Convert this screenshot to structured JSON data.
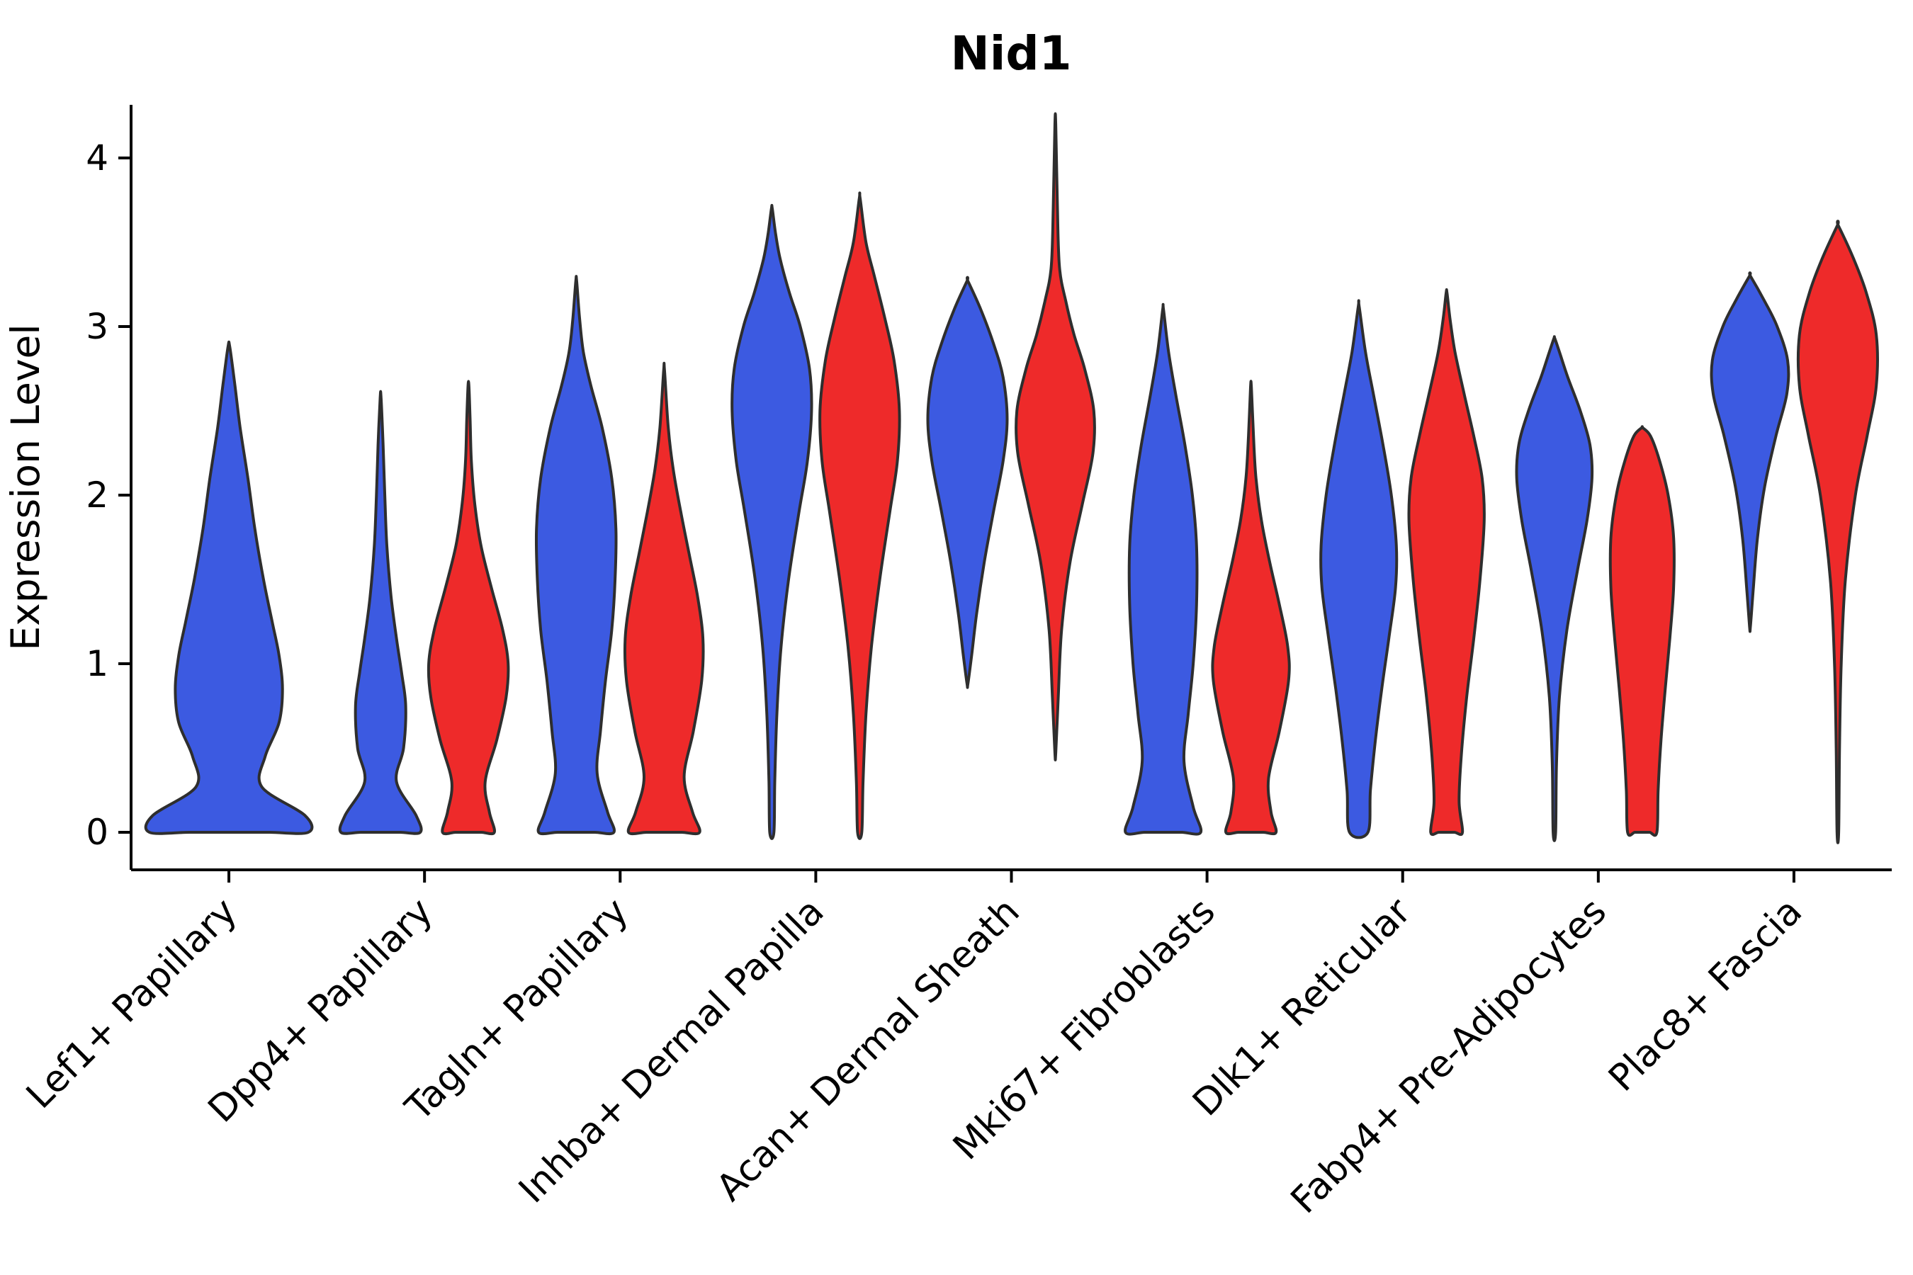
{
  "figure": {
    "background": "#ffffff"
  },
  "chart_data": {
    "type": "violin",
    "title": "Nid1",
    "xlabel": "",
    "ylabel": "Expression Level",
    "yticks": [
      0,
      1,
      2,
      3,
      4
    ],
    "ylim": [
      -0.22,
      4.32
    ],
    "grid": false,
    "legend": "none",
    "edge_color": "#2e2e2e",
    "categories": [
      "Lef1+ Papillary",
      "Dpp4+ Papillary",
      "Tagln+ Papillary",
      "Inhba+ Dermal Papilla",
      "Acan+ Dermal Sheath",
      "Mki67+ Fibroblasts",
      "Dlk1+ Reticular",
      "Fabp4+ Pre-Adipocytes",
      "Plac8+ Fascia"
    ],
    "groups": [
      {
        "id": "blue",
        "color": "#3c5ae1"
      },
      {
        "id": "red",
        "color": "#ee2a2a"
      }
    ],
    "violins": [
      {
        "category": "Lef1+ Papillary",
        "category_index": 0,
        "group": "blue",
        "span": "full",
        "range": [
          0,
          2.88
        ],
        "profile": [
          [
            0,
            0.92
          ],
          [
            0.1,
            0.88
          ],
          [
            0.27,
            0.38
          ],
          [
            0.45,
            0.42
          ],
          [
            0.65,
            0.58
          ],
          [
            0.85,
            0.62
          ],
          [
            1.05,
            0.58
          ],
          [
            1.25,
            0.5
          ],
          [
            1.5,
            0.4
          ],
          [
            1.8,
            0.3
          ],
          [
            2.1,
            0.22
          ],
          [
            2.4,
            0.13
          ],
          [
            2.65,
            0.07
          ],
          [
            2.88,
            0.01
          ]
        ]
      },
      {
        "category": "Dpp4+ Papillary",
        "category_index": 1,
        "group": "blue",
        "span": "half",
        "range": [
          0,
          2.58
        ],
        "profile": [
          [
            0,
            0.95
          ],
          [
            0.1,
            0.85
          ],
          [
            0.3,
            0.38
          ],
          [
            0.5,
            0.55
          ],
          [
            0.75,
            0.6
          ],
          [
            0.95,
            0.5
          ],
          [
            1.15,
            0.38
          ],
          [
            1.4,
            0.25
          ],
          [
            1.7,
            0.15
          ],
          [
            2.0,
            0.1
          ],
          [
            2.3,
            0.06
          ],
          [
            2.58,
            0.01
          ]
        ]
      },
      {
        "category": "Dpp4+ Papillary",
        "category_index": 1,
        "group": "red",
        "span": "half",
        "range": [
          0,
          2.65
        ],
        "profile": [
          [
            0,
            0.62
          ],
          [
            0.12,
            0.5
          ],
          [
            0.3,
            0.4
          ],
          [
            0.55,
            0.68
          ],
          [
            0.8,
            0.9
          ],
          [
            1.0,
            0.95
          ],
          [
            1.2,
            0.82
          ],
          [
            1.45,
            0.55
          ],
          [
            1.7,
            0.3
          ],
          [
            1.95,
            0.15
          ],
          [
            2.2,
            0.07
          ],
          [
            2.45,
            0.04
          ],
          [
            2.65,
            0.01
          ]
        ]
      },
      {
        "category": "Tagln+ Papillary",
        "category_index": 2,
        "group": "blue",
        "span": "half",
        "range": [
          0,
          3.27
        ],
        "profile": [
          [
            0,
            0.9
          ],
          [
            0.12,
            0.75
          ],
          [
            0.35,
            0.5
          ],
          [
            0.6,
            0.58
          ],
          [
            0.9,
            0.7
          ],
          [
            1.2,
            0.85
          ],
          [
            1.5,
            0.93
          ],
          [
            1.8,
            0.95
          ],
          [
            2.1,
            0.85
          ],
          [
            2.4,
            0.62
          ],
          [
            2.65,
            0.35
          ],
          [
            2.85,
            0.17
          ],
          [
            3.05,
            0.08
          ],
          [
            3.27,
            0.01
          ]
        ]
      },
      {
        "category": "Tagln+ Papillary",
        "category_index": 2,
        "group": "red",
        "span": "half",
        "range": [
          0,
          2.74
        ],
        "profile": [
          [
            0,
            0.85
          ],
          [
            0.12,
            0.68
          ],
          [
            0.33,
            0.48
          ],
          [
            0.6,
            0.7
          ],
          [
            0.9,
            0.9
          ],
          [
            1.15,
            0.93
          ],
          [
            1.4,
            0.8
          ],
          [
            1.65,
            0.6
          ],
          [
            1.9,
            0.4
          ],
          [
            2.15,
            0.22
          ],
          [
            2.4,
            0.1
          ],
          [
            2.74,
            0.01
          ]
        ]
      },
      {
        "category": "Inhba+ Dermal Papilla",
        "category_index": 3,
        "group": "blue",
        "span": "half",
        "range": [
          0,
          3.7
        ],
        "profile": [
          [
            0,
            0.05
          ],
          [
            0.3,
            0.07
          ],
          [
            0.7,
            0.12
          ],
          [
            1.1,
            0.22
          ],
          [
            1.5,
            0.4
          ],
          [
            1.9,
            0.65
          ],
          [
            2.2,
            0.85
          ],
          [
            2.5,
            0.95
          ],
          [
            2.75,
            0.9
          ],
          [
            3.0,
            0.68
          ],
          [
            3.2,
            0.42
          ],
          [
            3.4,
            0.2
          ],
          [
            3.55,
            0.09
          ],
          [
            3.7,
            0.01
          ]
        ]
      },
      {
        "category": "Inhba+ Dermal Papilla",
        "category_index": 3,
        "group": "red",
        "span": "half",
        "range": [
          0,
          3.76
        ],
        "profile": [
          [
            0,
            0.05
          ],
          [
            0.3,
            0.08
          ],
          [
            0.7,
            0.15
          ],
          [
            1.1,
            0.28
          ],
          [
            1.5,
            0.48
          ],
          [
            1.9,
            0.72
          ],
          [
            2.2,
            0.9
          ],
          [
            2.5,
            0.95
          ],
          [
            2.8,
            0.82
          ],
          [
            3.05,
            0.6
          ],
          [
            3.3,
            0.35
          ],
          [
            3.5,
            0.15
          ],
          [
            3.76,
            0.01
          ]
        ]
      },
      {
        "category": "Acan+ Dermal Sheath",
        "category_index": 4,
        "group": "blue",
        "span": "half",
        "range": [
          0.88,
          3.27
        ],
        "profile": [
          [
            0.88,
            0.01
          ],
          [
            1.05,
            0.1
          ],
          [
            1.3,
            0.22
          ],
          [
            1.6,
            0.4
          ],
          [
            1.9,
            0.62
          ],
          [
            2.2,
            0.85
          ],
          [
            2.45,
            0.95
          ],
          [
            2.7,
            0.85
          ],
          [
            2.9,
            0.62
          ],
          [
            3.1,
            0.32
          ],
          [
            3.27,
            0.01
          ]
        ]
      },
      {
        "category": "Acan+ Dermal Sheath",
        "category_index": 4,
        "group": "red",
        "span": "half",
        "range": [
          0.47,
          4.2
        ],
        "profile": [
          [
            0.47,
            0.01
          ],
          [
            0.8,
            0.07
          ],
          [
            1.2,
            0.15
          ],
          [
            1.6,
            0.35
          ],
          [
            1.95,
            0.65
          ],
          [
            2.25,
            0.9
          ],
          [
            2.5,
            0.92
          ],
          [
            2.75,
            0.7
          ],
          [
            2.95,
            0.45
          ],
          [
            3.15,
            0.25
          ],
          [
            3.35,
            0.1
          ],
          [
            3.7,
            0.05
          ],
          [
            4.2,
            0.01
          ]
        ]
      },
      {
        "category": "Mki67+ Fibroblasts",
        "category_index": 5,
        "group": "blue",
        "span": "half",
        "range": [
          0,
          3.1
        ],
        "profile": [
          [
            0,
            0.9
          ],
          [
            0.15,
            0.72
          ],
          [
            0.42,
            0.5
          ],
          [
            0.7,
            0.6
          ],
          [
            1.0,
            0.72
          ],
          [
            1.35,
            0.8
          ],
          [
            1.7,
            0.8
          ],
          [
            2.0,
            0.7
          ],
          [
            2.3,
            0.52
          ],
          [
            2.6,
            0.3
          ],
          [
            2.85,
            0.13
          ],
          [
            3.1,
            0.01
          ]
        ]
      },
      {
        "category": "Mki67+ Fibroblasts",
        "category_index": 5,
        "group": "red",
        "span": "half",
        "range": [
          0,
          2.64
        ],
        "profile": [
          [
            0,
            0.6
          ],
          [
            0.12,
            0.48
          ],
          [
            0.32,
            0.42
          ],
          [
            0.6,
            0.68
          ],
          [
            0.9,
            0.9
          ],
          [
            1.1,
            0.88
          ],
          [
            1.35,
            0.68
          ],
          [
            1.6,
            0.45
          ],
          [
            1.85,
            0.25
          ],
          [
            2.1,
            0.12
          ],
          [
            2.35,
            0.06
          ],
          [
            2.64,
            0.01
          ]
        ]
      },
      {
        "category": "Dlk1+ Reticular",
        "category_index": 6,
        "group": "blue",
        "span": "half",
        "range": [
          0,
          3.12
        ],
        "profile": [
          [
            0,
            0.22
          ],
          [
            0.25,
            0.28
          ],
          [
            0.55,
            0.4
          ],
          [
            0.85,
            0.55
          ],
          [
            1.15,
            0.72
          ],
          [
            1.45,
            0.88
          ],
          [
            1.7,
            0.9
          ],
          [
            2.0,
            0.78
          ],
          [
            2.3,
            0.58
          ],
          [
            2.6,
            0.35
          ],
          [
            2.85,
            0.16
          ],
          [
            3.12,
            0.01
          ]
        ]
      },
      {
        "category": "Dlk1+ Reticular",
        "category_index": 6,
        "group": "red",
        "span": "half",
        "range": [
          0,
          3.2
        ],
        "profile": [
          [
            0,
            0.38
          ],
          [
            0.18,
            0.3
          ],
          [
            0.45,
            0.35
          ],
          [
            0.8,
            0.48
          ],
          [
            1.15,
            0.65
          ],
          [
            1.5,
            0.8
          ],
          [
            1.85,
            0.9
          ],
          [
            2.1,
            0.85
          ],
          [
            2.35,
            0.65
          ],
          [
            2.6,
            0.42
          ],
          [
            2.85,
            0.2
          ],
          [
            3.05,
            0.08
          ],
          [
            3.2,
            0.01
          ]
        ]
      },
      {
        "category": "Fabp4+ Pre-Adipocytes",
        "category_index": 7,
        "group": "blue",
        "span": "half",
        "range": [
          0,
          2.93
        ],
        "profile": [
          [
            0,
            0.03
          ],
          [
            0.4,
            0.05
          ],
          [
            0.8,
            0.12
          ],
          [
            1.2,
            0.3
          ],
          [
            1.55,
            0.55
          ],
          [
            1.85,
            0.78
          ],
          [
            2.1,
            0.9
          ],
          [
            2.3,
            0.85
          ],
          [
            2.5,
            0.62
          ],
          [
            2.7,
            0.32
          ],
          [
            2.85,
            0.12
          ],
          [
            2.93,
            0.01
          ]
        ]
      },
      {
        "category": "Fabp4+ Pre-Adipocytes",
        "category_index": 7,
        "group": "red",
        "span": "half",
        "range": [
          0,
          2.4
        ],
        "profile": [
          [
            0,
            0.35
          ],
          [
            0.25,
            0.38
          ],
          [
            0.55,
            0.45
          ],
          [
            0.85,
            0.55
          ],
          [
            1.15,
            0.66
          ],
          [
            1.45,
            0.75
          ],
          [
            1.75,
            0.75
          ],
          [
            2.0,
            0.62
          ],
          [
            2.2,
            0.42
          ],
          [
            2.35,
            0.2
          ],
          [
            2.4,
            0.01
          ]
        ]
      },
      {
        "category": "Plac8+ Fascia",
        "category_index": 8,
        "group": "blue",
        "span": "half",
        "range": [
          1.22,
          3.3
        ],
        "profile": [
          [
            1.22,
            0.01
          ],
          [
            1.45,
            0.08
          ],
          [
            1.75,
            0.18
          ],
          [
            2.05,
            0.35
          ],
          [
            2.35,
            0.62
          ],
          [
            2.6,
            0.88
          ],
          [
            2.8,
            0.9
          ],
          [
            3.0,
            0.65
          ],
          [
            3.15,
            0.35
          ],
          [
            3.3,
            0.01
          ]
        ]
      },
      {
        "category": "Plac8+ Fascia",
        "category_index": 8,
        "group": "red",
        "span": "half",
        "range": [
          0,
          3.6
        ],
        "profile": [
          [
            0,
            0.02
          ],
          [
            0.5,
            0.04
          ],
          [
            1.0,
            0.08
          ],
          [
            1.5,
            0.18
          ],
          [
            2.0,
            0.42
          ],
          [
            2.35,
            0.7
          ],
          [
            2.65,
            0.92
          ],
          [
            2.95,
            0.92
          ],
          [
            3.2,
            0.68
          ],
          [
            3.4,
            0.38
          ],
          [
            3.6,
            0.01
          ]
        ]
      }
    ]
  }
}
